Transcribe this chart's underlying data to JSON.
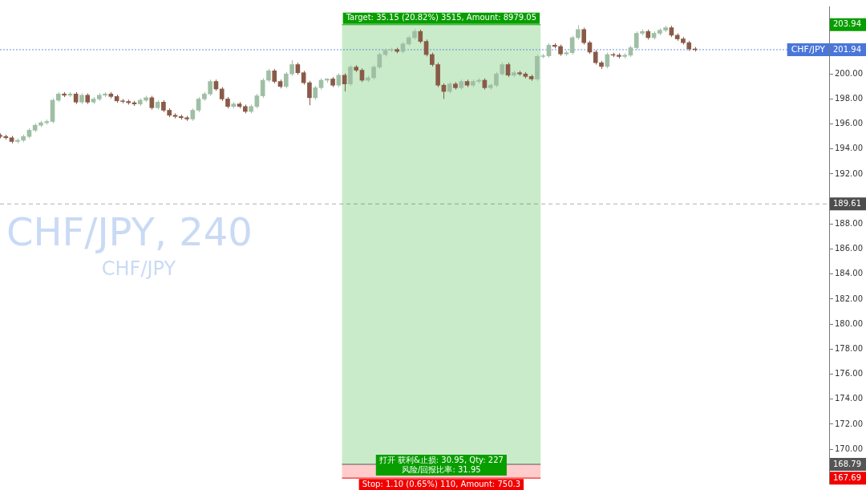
{
  "chart_data": {
    "type": "candlestick",
    "title": "CHF/JPY, 240",
    "subtitle": "CHF/JPY",
    "categories": [
      null,
      null,
      null,
      null,
      null,
      null,
      null,
      null,
      null,
      null,
      null,
      null,
      null,
      null,
      null,
      null,
      null,
      null,
      null,
      null,
      null,
      null,
      null,
      null,
      null,
      null,
      null,
      null,
      null,
      null,
      null,
      null,
      null,
      null,
      null,
      null,
      null,
      null,
      null,
      null,
      null,
      null,
      null,
      null,
      null,
      null,
      null,
      null,
      null,
      null,
      null,
      null,
      null,
      null,
      null,
      null,
      null,
      null,
      null,
      null,
      null,
      null,
      null,
      null,
      null,
      null,
      null,
      null,
      null,
      null,
      null,
      null,
      null,
      null,
      null,
      null,
      null,
      null,
      null,
      null,
      null,
      null,
      null,
      null,
      null,
      null,
      null,
      null,
      null,
      null,
      null,
      null,
      null,
      null,
      null,
      null,
      null,
      null,
      null,
      null,
      null,
      null,
      null,
      null,
      null,
      null,
      null,
      null,
      null,
      null,
      null,
      null,
      null,
      null,
      null,
      null,
      null,
      null,
      null,
      null,
      null,
      null,
      null,
      null,
      null,
      null,
      null,
      null,
      null,
      null,
      null,
      null,
      null,
      null,
      null,
      null,
      null,
      null,
      null,
      null,
      null,
      null,
      null
    ],
    "ohlc": [
      [
        195.1,
        195.25,
        194.85,
        195.0
      ],
      [
        195.0,
        195.15,
        194.75,
        194.9
      ],
      [
        194.9,
        195.05,
        194.45,
        194.6
      ],
      [
        194.6,
        194.85,
        194.45,
        194.7
      ],
      [
        194.7,
        195.15,
        194.55,
        195.0
      ],
      [
        195.0,
        195.65,
        194.85,
        195.5
      ],
      [
        195.5,
        196.05,
        195.35,
        195.9
      ],
      [
        195.9,
        196.25,
        195.75,
        196.1
      ],
      [
        196.1,
        196.35,
        195.95,
        196.2
      ],
      [
        196.2,
        198.05,
        196.05,
        197.9
      ],
      [
        197.9,
        198.55,
        197.75,
        198.4
      ],
      [
        198.4,
        198.55,
        198.15,
        198.3
      ],
      [
        198.3,
        198.55,
        198.15,
        198.4
      ],
      [
        198.4,
        198.55,
        197.6,
        197.75
      ],
      [
        197.75,
        198.45,
        197.6,
        198.3
      ],
      [
        198.3,
        198.45,
        197.6,
        197.75
      ],
      [
        197.75,
        198.15,
        197.6,
        198.0
      ],
      [
        198.0,
        198.45,
        197.85,
        198.3
      ],
      [
        198.3,
        198.55,
        198.15,
        198.4
      ],
      [
        198.4,
        198.55,
        198.05,
        198.2
      ],
      [
        198.2,
        198.35,
        197.7,
        197.85
      ],
      [
        197.85,
        198.0,
        197.65,
        197.8
      ],
      [
        197.8,
        197.95,
        197.55,
        197.7
      ],
      [
        197.7,
        197.85,
        197.45,
        197.6
      ],
      [
        197.6,
        198.05,
        197.45,
        197.9
      ],
      [
        197.9,
        198.25,
        197.75,
        198.1
      ],
      [
        198.1,
        198.25,
        197.15,
        197.3
      ],
      [
        197.3,
        197.9,
        197.15,
        197.75
      ],
      [
        197.75,
        197.9,
        196.95,
        197.1
      ],
      [
        197.1,
        197.25,
        196.55,
        196.7
      ],
      [
        196.7,
        196.85,
        196.45,
        196.6
      ],
      [
        196.6,
        196.75,
        196.35,
        196.5
      ],
      [
        196.5,
        196.65,
        196.25,
        196.4
      ],
      [
        196.4,
        197.25,
        196.25,
        197.1
      ],
      [
        197.1,
        198.15,
        196.95,
        198.0
      ],
      [
        198.0,
        198.55,
        197.85,
        198.4
      ],
      [
        198.4,
        199.55,
        198.25,
        199.4
      ],
      [
        199.4,
        199.55,
        198.65,
        198.8
      ],
      [
        198.8,
        198.95,
        197.85,
        198.0
      ],
      [
        198.0,
        198.15,
        197.25,
        197.4
      ],
      [
        197.4,
        197.75,
        197.25,
        197.6
      ],
      [
        197.6,
        197.75,
        197.25,
        197.4
      ],
      [
        197.4,
        197.55,
        196.85,
        197.0
      ],
      [
        197.0,
        197.55,
        196.85,
        197.4
      ],
      [
        197.4,
        198.4,
        197.25,
        198.25
      ],
      [
        198.25,
        199.65,
        198.1,
        199.5
      ],
      [
        199.5,
        200.4,
        199.35,
        200.25
      ],
      [
        200.25,
        200.4,
        199.25,
        199.4
      ],
      [
        199.4,
        199.55,
        198.85,
        199.0
      ],
      [
        199.0,
        200.15,
        198.85,
        200.0
      ],
      [
        200.0,
        201.1,
        199.85,
        200.75
      ],
      [
        200.75,
        200.9,
        199.95,
        200.1
      ],
      [
        200.1,
        200.25,
        199.15,
        199.3
      ],
      [
        199.3,
        199.45,
        197.5,
        198.1
      ],
      [
        198.1,
        199.05,
        197.95,
        198.9
      ],
      [
        198.9,
        199.65,
        198.75,
        199.5
      ],
      [
        199.5,
        199.65,
        199.3,
        199.6
      ],
      [
        199.6,
        199.75,
        198.95,
        199.1
      ],
      [
        199.1,
        200.05,
        198.95,
        199.9
      ],
      [
        199.9,
        200.05,
        198.6,
        199.2
      ],
      [
        199.2,
        200.7,
        199.05,
        200.55
      ],
      [
        200.55,
        200.7,
        200.15,
        200.3
      ],
      [
        200.3,
        200.45,
        199.35,
        199.5
      ],
      [
        199.5,
        199.85,
        199.35,
        199.7
      ],
      [
        199.7,
        200.7,
        199.55,
        200.55
      ],
      [
        200.55,
        201.7,
        200.4,
        201.55
      ],
      [
        201.55,
        202.05,
        201.4,
        201.9
      ],
      [
        201.9,
        202.1,
        201.75,
        201.95
      ],
      [
        201.95,
        202.1,
        201.65,
        201.8
      ],
      [
        201.8,
        202.55,
        201.65,
        202.4
      ],
      [
        202.4,
        203.05,
        202.25,
        202.9
      ],
      [
        202.9,
        203.6,
        202.75,
        203.4
      ],
      [
        203.4,
        203.55,
        202.45,
        202.6
      ],
      [
        202.6,
        202.75,
        201.4,
        201.55
      ],
      [
        201.55,
        201.7,
        200.6,
        200.75
      ],
      [
        200.75,
        200.9,
        198.95,
        199.1
      ],
      [
        199.1,
        199.25,
        198.0,
        198.6
      ],
      [
        198.6,
        199.35,
        198.45,
        199.2
      ],
      [
        199.2,
        199.35,
        198.75,
        198.9
      ],
      [
        198.9,
        199.55,
        198.75,
        199.4
      ],
      [
        199.4,
        199.55,
        198.95,
        199.1
      ],
      [
        199.1,
        199.55,
        198.95,
        199.4
      ],
      [
        199.4,
        199.65,
        199.25,
        199.5
      ],
      [
        199.5,
        199.65,
        198.75,
        198.9
      ],
      [
        198.9,
        199.25,
        198.75,
        199.1
      ],
      [
        199.1,
        200.15,
        198.95,
        200.0
      ],
      [
        200.0,
        200.9,
        199.85,
        200.75
      ],
      [
        200.75,
        200.9,
        199.75,
        199.9
      ],
      [
        199.9,
        200.25,
        199.75,
        200.1
      ],
      [
        200.1,
        200.25,
        199.85,
        200.0
      ],
      [
        200.0,
        200.15,
        199.65,
        199.8
      ],
      [
        199.8,
        199.95,
        199.45,
        199.6
      ],
      [
        199.6,
        201.55,
        199.45,
        201.4
      ],
      [
        201.4,
        201.6,
        201.25,
        201.45
      ],
      [
        201.45,
        202.45,
        201.3,
        202.3
      ],
      [
        202.3,
        202.45,
        202.05,
        202.2
      ],
      [
        202.2,
        202.35,
        201.45,
        201.6
      ],
      [
        201.6,
        201.85,
        201.45,
        201.7
      ],
      [
        201.7,
        203.05,
        201.55,
        202.9
      ],
      [
        202.9,
        203.9,
        202.75,
        203.55
      ],
      [
        203.55,
        203.7,
        202.35,
        202.5
      ],
      [
        202.5,
        202.65,
        201.6,
        201.75
      ],
      [
        201.75,
        201.9,
        200.75,
        200.9
      ],
      [
        200.9,
        201.05,
        200.4,
        200.6
      ],
      [
        200.6,
        201.7,
        200.45,
        201.55
      ],
      [
        201.55,
        201.7,
        201.35,
        201.5
      ],
      [
        201.5,
        201.65,
        201.25,
        201.4
      ],
      [
        201.4,
        201.65,
        201.25,
        201.5
      ],
      [
        201.5,
        202.25,
        201.35,
        202.1
      ],
      [
        202.1,
        203.4,
        201.95,
        203.25
      ],
      [
        203.25,
        203.55,
        203.1,
        203.4
      ],
      [
        203.4,
        203.55,
        202.75,
        202.9
      ],
      [
        202.9,
        203.4,
        202.75,
        203.25
      ],
      [
        203.25,
        203.65,
        203.1,
        203.5
      ],
      [
        203.5,
        203.85,
        203.35,
        203.7
      ],
      [
        203.7,
        203.85,
        202.95,
        203.1
      ],
      [
        203.1,
        203.25,
        202.65,
        202.8
      ],
      [
        202.8,
        202.95,
        202.35,
        202.5
      ],
      [
        202.5,
        202.65,
        201.85,
        202.0
      ],
      [
        202.0,
        202.15,
        201.8,
        201.94
      ],
      null,
      null,
      null,
      null,
      null,
      null,
      null,
      null,
      null,
      null,
      null,
      null,
      null,
      null,
      null,
      null,
      null,
      null,
      null,
      null,
      null,
      null,
      null
    ],
    "ylim": [
      167.25,
      205.4
    ],
    "yticks": [
      {
        "value": 170,
        "label": "170.00"
      },
      {
        "value": 172,
        "label": "172.00"
      },
      {
        "value": 174,
        "label": "174.00"
      },
      {
        "value": 176,
        "label": "176.00"
      },
      {
        "value": 178,
        "label": "178.00"
      },
      {
        "value": 180,
        "label": "180.00"
      },
      {
        "value": 182,
        "label": "182.00"
      },
      {
        "value": 184,
        "label": "184.00"
      },
      {
        "value": 186,
        "label": "186.00"
      },
      {
        "value": 188,
        "label": "188.00"
      },
      {
        "value": 190,
        "label": null
      },
      {
        "value": 192,
        "label": "192.00"
      },
      {
        "value": 194,
        "label": "194.00"
      },
      {
        "value": 196,
        "label": "196.00"
      },
      {
        "value": 198,
        "label": "198.00"
      },
      {
        "value": 200,
        "label": "200.00"
      }
    ],
    "tick_labels": "y",
    "grid": false,
    "legend": false,
    "ref_lines": [
      {
        "axis": "y",
        "value": 201.94,
        "label": "CHF/JPY",
        "color": "#4a76d9",
        "line_style": "dotted"
      },
      {
        "axis": "y",
        "value": 189.61,
        "color": "#4d4d4d",
        "line_style": "dashed"
      },
      {
        "axis": "y",
        "value": 203.94,
        "color": "#089e00"
      },
      {
        "axis": "y",
        "value": 168.79,
        "color": "#555555"
      },
      {
        "axis": "y",
        "value": 167.69,
        "color": "#f20000"
      }
    ],
    "bands": [
      {
        "axis": "y",
        "from": 168.79,
        "to": 203.94,
        "color": "#c9ebc9"
      },
      {
        "axis": "y",
        "from": 167.69,
        "to": 168.79,
        "color": "#ffcccc"
      }
    ],
    "annotations": [
      "Target: 35.15 (20.82%) 3515, Amount: 8979.05",
      "打开 获利&止损: 30.95, Qty: 227",
      "风险/回报比率: 31.95",
      "Stop: 1.10 (0.65%) 110, Amount: 750.3",
      "201.94",
      "189.61",
      "203.94",
      "168.79",
      "167.69"
    ]
  }
}
